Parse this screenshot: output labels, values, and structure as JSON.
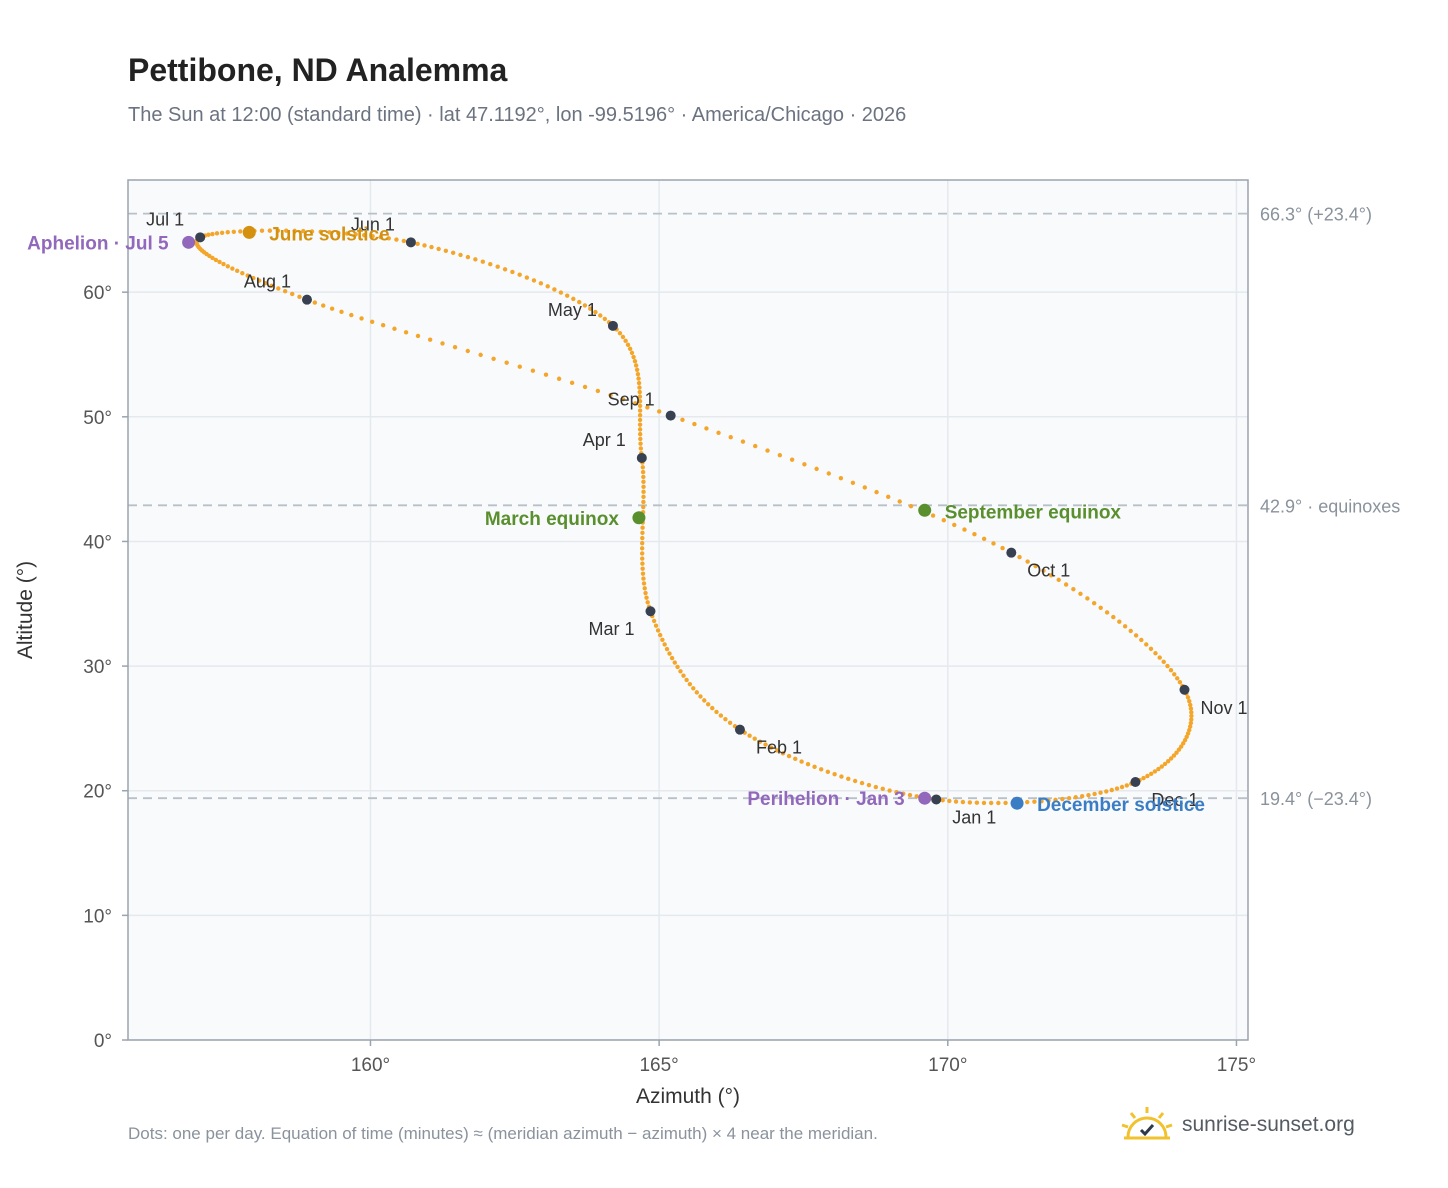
{
  "title": "Pettibone, ND Analemma",
  "subtitle": "The Sun at 12:00 (standard time) · lat 47.1192°, lon -99.5196° · America/Chicago · 2026",
  "footnote": "Dots: one per day. Equation of time (minutes) ≈ (meridian azimuth − azimuth) × 4 near the meridian.",
  "brand": {
    "text": "sunrise-sunset.org",
    "icon": "sun-check-icon"
  },
  "colors": {
    "curve": "#f4a62a",
    "month_marker": "#374151",
    "solstice_june": "#d4910f",
    "solstice_december": "#3b7dc4",
    "equinox": "#5a8f2e",
    "apsis": "#9268bd",
    "reference_line": "#b8c0c8",
    "plot_background": "#f8fafc",
    "grid": "#e5e9ee"
  },
  "chart_data": {
    "type": "scatter",
    "xlabel": "Azimuth (°)",
    "ylabel": "Altitude (°)",
    "xlim": [
      155.8,
      175.2
    ],
    "ylim": [
      0,
      69
    ],
    "x_ticks": [
      160,
      165,
      170,
      175
    ],
    "x_tick_labels": [
      "160°",
      "165°",
      "170°",
      "175°"
    ],
    "y_ticks": [
      0,
      10,
      20,
      30,
      40,
      50,
      60
    ],
    "y_tick_labels": [
      "0°",
      "10°",
      "20°",
      "30°",
      "40°",
      "50°",
      "60°"
    ],
    "grid": true,
    "month_points": [
      {
        "label": "Jan 1",
        "azimuth": 169.8,
        "altitude": 19.3
      },
      {
        "label": "Feb 1",
        "azimuth": 166.4,
        "altitude": 24.9
      },
      {
        "label": "Mar 1",
        "azimuth": 164.85,
        "altitude": 34.4
      },
      {
        "label": "Apr 1",
        "azimuth": 164.7,
        "altitude": 46.7
      },
      {
        "label": "May 1",
        "azimuth": 164.2,
        "altitude": 57.3
      },
      {
        "label": "Jun 1",
        "azimuth": 160.7,
        "altitude": 64.0
      },
      {
        "label": "Jul 1",
        "azimuth": 157.05,
        "altitude": 64.4
      },
      {
        "label": "Aug 1",
        "azimuth": 158.9,
        "altitude": 59.4
      },
      {
        "label": "Sep 1",
        "azimuth": 165.2,
        "altitude": 50.1
      },
      {
        "label": "Oct 1",
        "azimuth": 171.1,
        "altitude": 39.1
      },
      {
        "label": "Nov 1",
        "azimuth": 174.1,
        "altitude": 28.1
      },
      {
        "label": "Dec 1",
        "azimuth": 173.25,
        "altitude": 20.7
      }
    ],
    "events": [
      {
        "label": "June solstice",
        "azimuth": 157.9,
        "altitude": 64.8,
        "kind": "solstice_june"
      },
      {
        "label": "December solstice",
        "azimuth": 171.2,
        "altitude": 19.0,
        "kind": "solstice_december"
      },
      {
        "label": "March equinox",
        "azimuth": 164.65,
        "altitude": 41.9,
        "kind": "equinox"
      },
      {
        "label": "September equinox",
        "azimuth": 169.6,
        "altitude": 42.5,
        "kind": "equinox"
      },
      {
        "label": "Aphelion · Jul 5",
        "azimuth": 156.85,
        "altitude": 64.0,
        "kind": "apsis"
      },
      {
        "label": "Perihelion · Jan 3",
        "azimuth": 169.6,
        "altitude": 19.4,
        "kind": "apsis"
      }
    ],
    "reference_lines": [
      {
        "label": "66.3° (+23.4°)",
        "altitude": 66.3
      },
      {
        "label": "42.9° · equinoxes",
        "altitude": 42.9
      },
      {
        "label": "19.4° (−23.4°)",
        "altitude": 19.4
      }
    ]
  }
}
